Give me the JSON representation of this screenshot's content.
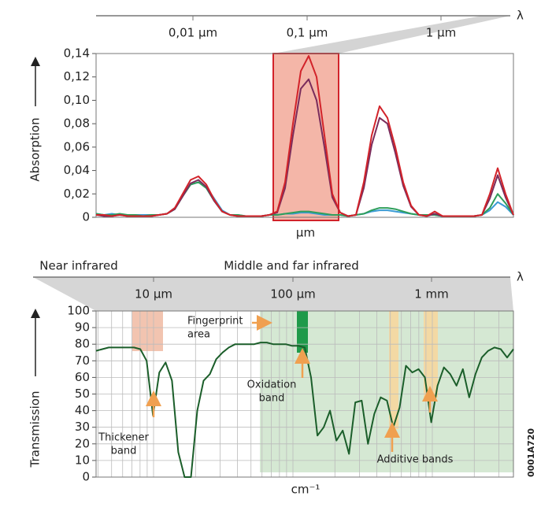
{
  "chart_data": [
    {
      "type": "line",
      "ylabel": "Absorption",
      "xlabel": "µm",
      "wavelength_labels": [
        "0,01 µm",
        "0,1 µm",
        "1 µm"
      ],
      "wavelength_symbol": "λ",
      "ylim": [
        0,
        0.14
      ],
      "yticks": [
        0,
        {
          "value": 0.02,
          "label": "0,02"
        },
        {
          "value": 0.04,
          "label": "0,04"
        },
        {
          "value": 0.06,
          "label": "0,06"
        },
        {
          "value": 0.08,
          "label": "0,08"
        },
        {
          "value": 0.1,
          "label": "0,10"
        },
        {
          "value": 0.12,
          "label": "0,12"
        },
        {
          "value": 0.14,
          "label": "0,14"
        }
      ],
      "series": [
        {
          "color": "#3a9bd5",
          "values": [
            0.003,
            0.002,
            0.003,
            0.002,
            0.002,
            0.002,
            0.002,
            0.002,
            0.002,
            0.003,
            0.008,
            0.019,
            0.028,
            0.03,
            0.026,
            0.016,
            0.006,
            0.002,
            0.002,
            0.001,
            0.001,
            0.001,
            0.002,
            0.002,
            0.003,
            0.003,
            0.004,
            0.004,
            0.003,
            0.002,
            0.002,
            0.002,
            0.001,
            0.002,
            0.003,
            0.005,
            0.006,
            0.006,
            0.005,
            0.004,
            0.003,
            0.002,
            0.002,
            0.002,
            0.001,
            0.001,
            0.001,
            0.001,
            0.001,
            0.002,
            0.006,
            0.013,
            0.009,
            0.002
          ]
        },
        {
          "color": "#2e9e5b",
          "values": [
            0.003,
            0.002,
            0.002,
            0.003,
            0.002,
            0.002,
            0.001,
            0.002,
            0.002,
            0.003,
            0.007,
            0.018,
            0.028,
            0.03,
            0.025,
            0.014,
            0.005,
            0.002,
            0.002,
            0.001,
            0.001,
            0.001,
            0.002,
            0.002,
            0.003,
            0.004,
            0.005,
            0.005,
            0.004,
            0.003,
            0.002,
            0.002,
            0.001,
            0.002,
            0.003,
            0.006,
            0.008,
            0.008,
            0.007,
            0.005,
            0.003,
            0.002,
            0.002,
            0.002,
            0.001,
            0.001,
            0.001,
            0.001,
            0.001,
            0.002,
            0.008,
            0.02,
            0.012,
            0.002
          ]
        },
        {
          "color": "#7a2c5c",
          "values": [
            0.002,
            0.001,
            0.001,
            0.002,
            0.001,
            0.001,
            0.001,
            0.001,
            0.002,
            0.003,
            0.007,
            0.018,
            0.029,
            0.032,
            0.026,
            0.014,
            0.005,
            0.002,
            0.001,
            0.001,
            0.001,
            0.001,
            0.002,
            0.004,
            0.025,
            0.07,
            0.11,
            0.118,
            0.1,
            0.06,
            0.017,
            0.004,
            0.001,
            0.002,
            0.025,
            0.062,
            0.085,
            0.08,
            0.055,
            0.027,
            0.009,
            0.002,
            0.001,
            0.003,
            0.001,
            0.001,
            0.001,
            0.001,
            0.001,
            0.002,
            0.016,
            0.036,
            0.017,
            0.002
          ]
        },
        {
          "color": "#d2232a",
          "values": [
            0.002,
            0.002,
            0.001,
            0.002,
            0.001,
            0.001,
            0.001,
            0.001,
            0.002,
            0.003,
            0.008,
            0.02,
            0.032,
            0.035,
            0.028,
            0.015,
            0.005,
            0.002,
            0.001,
            0.001,
            0.001,
            0.001,
            0.002,
            0.005,
            0.03,
            0.08,
            0.125,
            0.138,
            0.12,
            0.07,
            0.02,
            0.004,
            0.001,
            0.002,
            0.03,
            0.07,
            0.095,
            0.085,
            0.06,
            0.03,
            0.01,
            0.002,
            0.001,
            0.005,
            0.001,
            0.001,
            0.001,
            0.001,
            0.001,
            0.002,
            0.02,
            0.042,
            0.02,
            0.002
          ]
        }
      ]
    },
    {
      "type": "line",
      "ylabel": "Transmission",
      "xlabel": "cm⁻¹",
      "region_labels": [
        "Near infrared",
        "Middle and far infrared"
      ],
      "wavelength_labels": [
        "10 µm",
        "100 µm",
        "1 mm"
      ],
      "wavelength_symbol": "λ",
      "ylim": [
        0,
        100
      ],
      "yticks": [
        0,
        10,
        20,
        30,
        40,
        50,
        60,
        70,
        80,
        90,
        100
      ],
      "grid": true,
      "series": [
        {
          "color": "#1b5e2a",
          "values": [
            76,
            77,
            78,
            78,
            78,
            78,
            78,
            77,
            70,
            37,
            63,
            69,
            58,
            15,
            0,
            0,
            40,
            58,
            62,
            71,
            75,
            78,
            80,
            80,
            80,
            80,
            81,
            81,
            80,
            80,
            80,
            79,
            79,
            78,
            60,
            25,
            30,
            40,
            22,
            28,
            14,
            45,
            46,
            20,
            38,
            48,
            46,
            30,
            42,
            67,
            63,
            65,
            60,
            33,
            55,
            66,
            62,
            55,
            65,
            48,
            62,
            72,
            76,
            78,
            77,
            72,
            77
          ]
        }
      ],
      "annotations": [
        {
          "text": [
            "Fingerprint",
            "area"
          ]
        },
        {
          "text": [
            "Oxidation",
            "band"
          ]
        },
        {
          "text": [
            "Thickener",
            "band"
          ]
        },
        {
          "text": [
            "Additive bands"
          ]
        }
      ]
    }
  ],
  "figure_id": "0001A720"
}
